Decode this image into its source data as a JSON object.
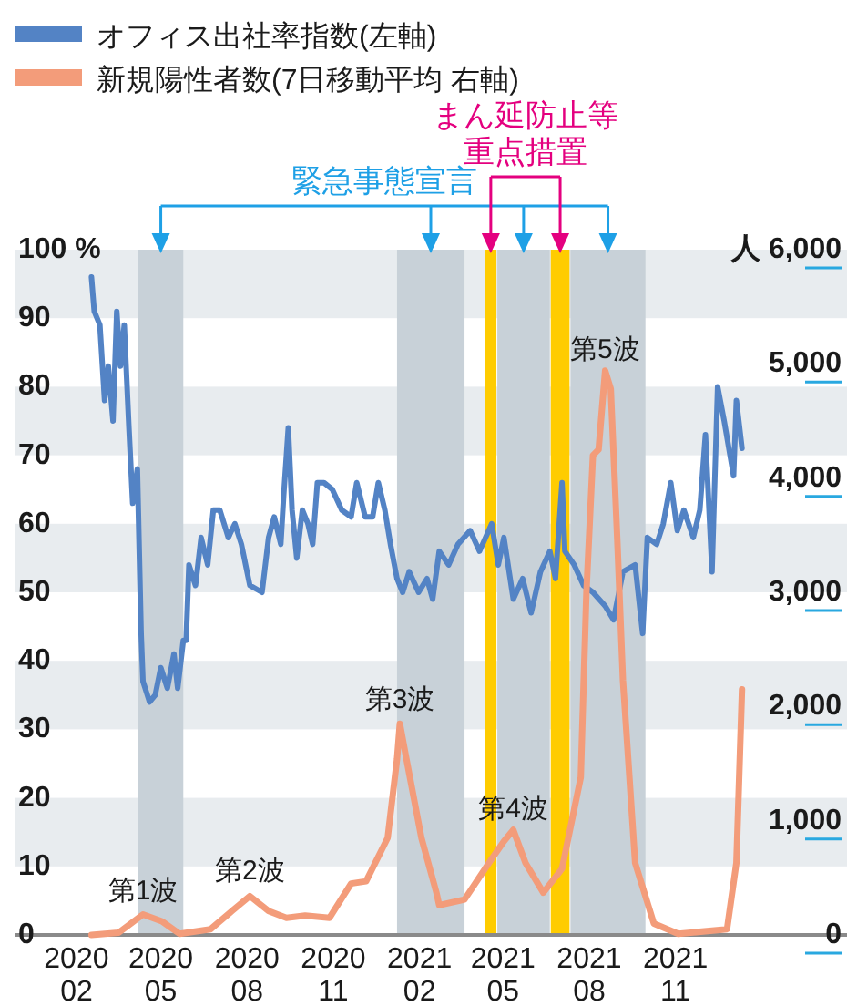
{
  "chart_data": {
    "type": "line",
    "legend": "top left",
    "xlim": [
      "2019-11-27",
      "2022-05-03"
    ],
    "xticks": [
      {
        "value": "2020-02-01",
        "label": "2020 02"
      },
      {
        "value": "2020-05-01",
        "label": "2020 05"
      },
      {
        "value": "2020-08-01",
        "label": "2020 08"
      },
      {
        "value": "2020-11-01",
        "label": "2020 11"
      },
      {
        "value": "2021-02-01",
        "label": "2021 02"
      },
      {
        "value": "2021-05-01",
        "label": "2021 05"
      },
      {
        "value": "2021-08-01",
        "label": "2021 08"
      },
      {
        "value": "2021-11-01",
        "label": "2021 11"
      }
    ],
    "ylim": [
      0,
      100
    ],
    "yticks": [
      0,
      10,
      20,
      30,
      40,
      50,
      60,
      70,
      80,
      90,
      {
        "value": 100,
        "label": "100 %"
      }
    ],
    "y2lim": [
      0,
      6000
    ],
    "y2ticks": [
      0,
      {
        "value": 1000,
        "label": "1,000"
      },
      {
        "value": 2000,
        "label": "2,000"
      },
      {
        "value": 3000,
        "label": "3,000"
      },
      {
        "value": 4000,
        "label": "4,000"
      },
      {
        "value": 5000,
        "label": "5,000"
      },
      {
        "value": 6000,
        "label": "人 6,000"
      }
    ],
    "series": [
      {
        "name": "オフィス出社率指数(左軸)",
        "color": "#5383c5",
        "x": [
          "2020-02-17",
          "2020-02-20",
          "2020-02-26",
          "2020-03-02",
          "2020-03-06",
          "2020-03-11",
          "2020-03-15",
          "2020-03-19",
          "2020-03-23",
          "2020-03-28",
          "2020-04-01",
          "2020-04-06",
          "2020-04-10",
          "2020-04-12",
          "2020-04-19",
          "2020-04-25",
          "2020-05-01",
          "2020-05-08",
          "2020-05-15",
          "2020-05-19",
          "2020-05-25",
          "2020-05-28",
          "2020-05-31",
          "2020-06-07",
          "2020-06-13",
          "2020-06-20",
          "2020-06-26",
          "2020-07-03",
          "2020-07-12",
          "2020-07-19",
          "2020-07-26",
          "2020-08-04",
          "2020-08-17",
          "2020-08-24",
          "2020-08-30",
          "2020-09-06",
          "2020-09-09",
          "2020-09-14",
          "2020-09-18",
          "2020-09-23",
          "2020-09-29",
          "2020-10-05",
          "2020-10-10",
          "2020-10-15",
          "2020-10-22",
          "2020-10-31",
          "2020-11-10",
          "2020-11-20",
          "2020-11-26",
          "2020-12-05",
          "2020-12-13",
          "2020-12-19",
          "2020-12-26",
          "2021-01-01",
          "2021-01-08",
          "2021-01-14",
          "2021-01-21",
          "2021-01-31",
          "2021-02-09",
          "2021-02-15",
          "2021-02-22",
          "2021-03-04",
          "2021-03-14",
          "2021-03-27",
          "2021-04-06",
          "2021-04-19",
          "2021-04-26",
          "2021-05-02",
          "2021-05-12",
          "2021-05-22",
          "2021-05-31",
          "2021-06-10",
          "2021-06-20",
          "2021-06-26",
          "2021-07-03",
          "2021-07-06",
          "2021-07-16",
          "2021-07-26",
          "2021-08-05",
          "2021-08-18",
          "2021-08-27",
          "2021-09-06",
          "2021-09-19",
          "2021-09-27",
          "2021-10-02",
          "2021-10-12",
          "2021-10-19",
          "2021-10-27",
          "2021-11-03",
          "2021-11-10",
          "2021-11-20",
          "2021-11-27",
          "2021-12-03",
          "2021-12-10",
          "2021-12-16",
          "2021-12-23",
          "2022-01-02",
          "2022-01-05",
          "2022-01-11"
        ],
        "values": [
          96,
          91,
          89,
          78,
          83,
          75,
          91,
          83,
          89,
          74,
          63,
          68,
          44,
          37,
          34,
          35,
          39,
          36,
          41,
          36,
          43,
          43,
          54,
          51,
          58,
          54,
          62,
          62,
          58,
          60,
          57,
          51,
          50,
          58,
          61,
          57,
          64,
          74,
          62,
          55,
          62,
          60,
          57,
          66,
          66,
          65,
          62,
          61,
          66,
          61,
          61,
          66,
          62,
          57,
          52,
          50,
          53,
          50,
          52,
          49,
          56,
          54,
          57,
          59,
          56,
          60,
          54,
          58,
          49,
          52,
          47,
          53,
          56,
          52,
          66,
          56,
          54,
          51,
          50,
          48,
          46,
          53,
          54,
          44,
          58,
          57,
          60,
          66,
          59,
          62,
          58,
          62,
          73,
          53,
          80,
          75,
          67,
          78,
          71
        ]
      },
      {
        "name": "新規陽性者数(7日移動平均 右軸)",
        "color": "#f39c7a",
        "axis": "y2",
        "x": [
          "2020-02-17",
          "2020-03-17",
          "2020-04-12",
          "2020-05-02",
          "2020-05-21",
          "2020-06-23",
          "2020-07-16",
          "2020-08-04",
          "2020-08-24",
          "2020-09-12",
          "2020-10-02",
          "2020-10-28",
          "2020-11-20",
          "2020-12-06",
          "2020-12-29",
          "2021-01-08",
          "2021-01-11",
          "2021-01-18",
          "2021-02-03",
          "2021-02-19",
          "2021-02-22",
          "2021-03-21",
          "2021-04-16",
          "2021-05-02",
          "2021-05-12",
          "2021-05-25",
          "2021-06-13",
          "2021-07-03",
          "2021-07-23",
          "2021-07-29",
          "2021-08-05",
          "2021-08-11",
          "2021-08-18",
          "2021-08-24",
          "2021-08-31",
          "2021-09-06",
          "2021-09-19",
          "2021-10-09",
          "2021-11-04",
          "2021-12-26",
          "2022-01-05",
          "2022-01-11"
        ],
        "values": [
          0,
          20,
          180,
          120,
          10,
          50,
          210,
          340,
          210,
          150,
          170,
          150,
          450,
          470,
          850,
          1540,
          1850,
          1540,
          850,
          370,
          260,
          310,
          630,
          820,
          920,
          630,
          370,
          580,
          1380,
          3000,
          4200,
          4250,
          4940,
          4780,
          3450,
          2230,
          630,
          100,
          10,
          50,
          630,
          2150
        ]
      }
    ],
    "bands": [
      {
        "axis": "y",
        "from": 10,
        "to": 20,
        "color": "#e8ecef"
      },
      {
        "axis": "y",
        "from": 30,
        "to": 40,
        "color": "#e8ecef"
      },
      {
        "axis": "y",
        "from": 50,
        "to": 60,
        "color": "#e8ecef"
      },
      {
        "axis": "y",
        "from": 70,
        "to": 80,
        "color": "#e8ecef"
      },
      {
        "axis": "y",
        "from": 90,
        "to": 100,
        "color": "#e8ecef"
      },
      {
        "axis": "x",
        "from": "2020-04-07",
        "to": "2020-05-25",
        "color": "#c8d1d8"
      },
      {
        "axis": "x",
        "from": "2021-01-08",
        "to": "2021-03-21",
        "color": "#c8d1d8"
      },
      {
        "axis": "x",
        "from": "2021-04-12",
        "to": "2021-04-24",
        "color": "#ffcc00"
      },
      {
        "axis": "x",
        "from": "2021-04-25",
        "to": "2021-06-20",
        "color": "#c8d1d8"
      },
      {
        "axis": "x",
        "from": "2021-06-21",
        "to": "2021-07-11",
        "color": "#ffcc00"
      },
      {
        "axis": "x",
        "from": "2021-07-12",
        "to": "2021-09-30",
        "color": "#c8d1d8"
      }
    ],
    "annotations": [
      {
        "text": "第1波",
        "x": "2020-04-12",
        "y": 3
      },
      {
        "text": "第2波",
        "x": "2020-08-04",
        "y": 6
      },
      {
        "text": "第3波",
        "x": "2021-01-11",
        "y": 31
      },
      {
        "text": "第4波",
        "x": "2021-05-12",
        "y": 15
      },
      {
        "text": "第5波",
        "x": "2021-08-18",
        "y": 82
      },
      "緊急事態宣言",
      "まん延防止等重点措置"
    ]
  }
}
